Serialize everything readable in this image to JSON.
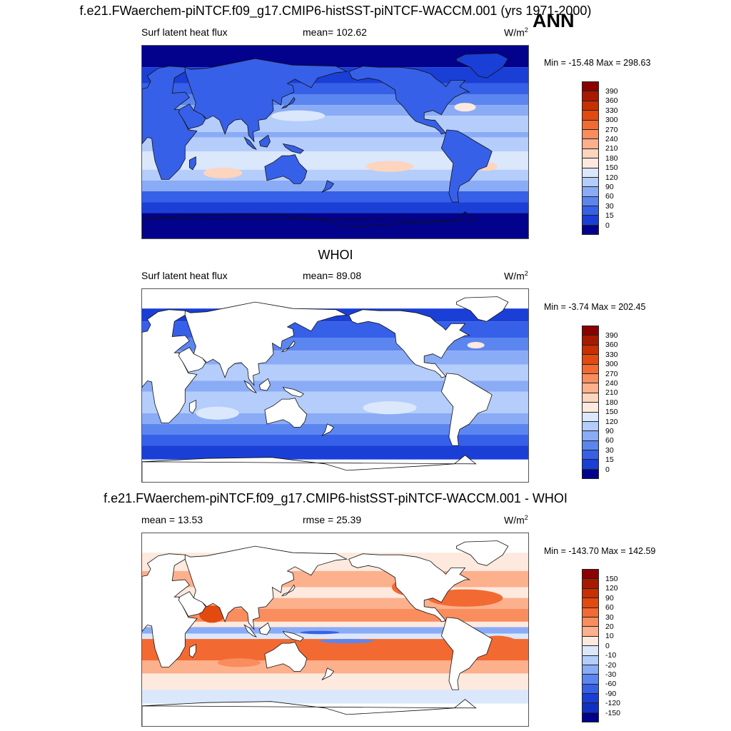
{
  "header": {
    "title": "f.e21.FWaerchem-piNTCF.f09_g17.CMIP6-histSST-piNTCF-WACCM.001 (yrs 1971-2000)",
    "season": "ANN"
  },
  "panels": [
    {
      "panel_title": "",
      "left_label": "Surf latent heat flux",
      "center_label": "mean= 102.62",
      "units": "W/m",
      "units_sup": "2",
      "minmax": "Min = -15.48 Max = 298.63",
      "type": "model"
    },
    {
      "panel_title": "WHOI",
      "left_label": "Surf latent heat flux",
      "center_label": "mean=  89.08",
      "units": "W/m",
      "units_sup": "2",
      "minmax": "Min =  -3.74 Max = 202.45",
      "type": "obs"
    },
    {
      "panel_title": "f.e21.FWaerchem-piNTCF.f09_g17.CMIP6-histSST-piNTCF-WACCM.001 - WHOI",
      "left_label": "mean =  13.53",
      "center_label": "rmse =  25.39",
      "units": "W/m",
      "units_sup": "2",
      "minmax": "Min = -143.70 Max = 142.59",
      "type": "diff"
    }
  ],
  "colorbars": {
    "abs": {
      "labels": [
        "390",
        "360",
        "330",
        "300",
        "270",
        "240",
        "210",
        "180",
        "150",
        "120",
        "90",
        "60",
        "30",
        "15",
        "0"
      ],
      "colors": [
        "#8b0000",
        "#a81a00",
        "#c83000",
        "#e24a10",
        "#f26a32",
        "#f98d5d",
        "#fdb08c",
        "#fdd4bd",
        "#fde9de",
        "#dbe7fb",
        "#b4cdfa",
        "#8aabf6",
        "#5c86ef",
        "#3760e8",
        "#1a3fd6",
        "#02028c"
      ]
    },
    "diff": {
      "labels": [
        "150",
        "120",
        "90",
        "60",
        "30",
        "20",
        "10",
        "0",
        "-10",
        "-20",
        "-30",
        "-60",
        "-90",
        "-120",
        "-150"
      ],
      "colors": [
        "#8b0000",
        "#a81a00",
        "#c83000",
        "#e24a10",
        "#f26a32",
        "#f98d5d",
        "#fdb08c",
        "#fde9de",
        "#dbe7fb",
        "#b4cdfa",
        "#8aabf6",
        "#5c86ef",
        "#3760e8",
        "#1a3fd6",
        "#1030c4",
        "#02028c"
      ]
    }
  }
}
